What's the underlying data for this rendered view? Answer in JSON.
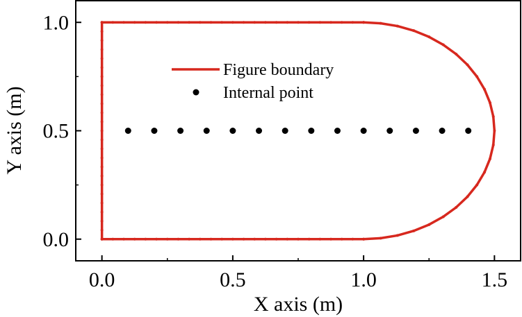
{
  "chart_data": {
    "type": "scatter",
    "xlabel": "X axis (m)",
    "ylabel": "Y axis (m)",
    "xlim": [
      -0.1,
      1.6
    ],
    "ylim": [
      -0.1,
      1.1
    ],
    "x_ticks": [
      0.0,
      0.5,
      1.0,
      1.5
    ],
    "y_ticks": [
      0.0,
      0.5,
      1.0
    ],
    "x_tick_labels": [
      "0.0",
      "0.5",
      "1.0",
      "1.5"
    ],
    "y_tick_labels": [
      "0.0",
      "0.5",
      "1.0"
    ],
    "legend_placement": "upper-center",
    "grid": false,
    "series": [
      {
        "name": "Figure boundary",
        "kind": "line",
        "color": "#d7281e",
        "segments": [
          {
            "shape": "line",
            "from": [
              1.0,
              0.0
            ],
            "to": [
              0.0,
              0.0
            ]
          },
          {
            "shape": "line",
            "from": [
              0.0,
              0.0
            ],
            "to": [
              0.0,
              1.0
            ]
          },
          {
            "shape": "line",
            "from": [
              0.0,
              1.0
            ],
            "to": [
              1.0,
              1.0
            ]
          },
          {
            "shape": "semicircle",
            "center": [
              1.0,
              0.5
            ],
            "radius": 0.5,
            "from_angle_deg": 90,
            "to_angle_deg": -90
          }
        ]
      },
      {
        "name": "Internal point",
        "kind": "scatter",
        "color": "#000000",
        "x": [
          0.1,
          0.2,
          0.3,
          0.4,
          0.5,
          0.6,
          0.7,
          0.8,
          0.9,
          1.0,
          1.1,
          1.2,
          1.3,
          1.4
        ],
        "y": [
          0.5,
          0.5,
          0.5,
          0.5,
          0.5,
          0.5,
          0.5,
          0.5,
          0.5,
          0.5,
          0.5,
          0.5,
          0.5,
          0.5
        ]
      }
    ]
  }
}
